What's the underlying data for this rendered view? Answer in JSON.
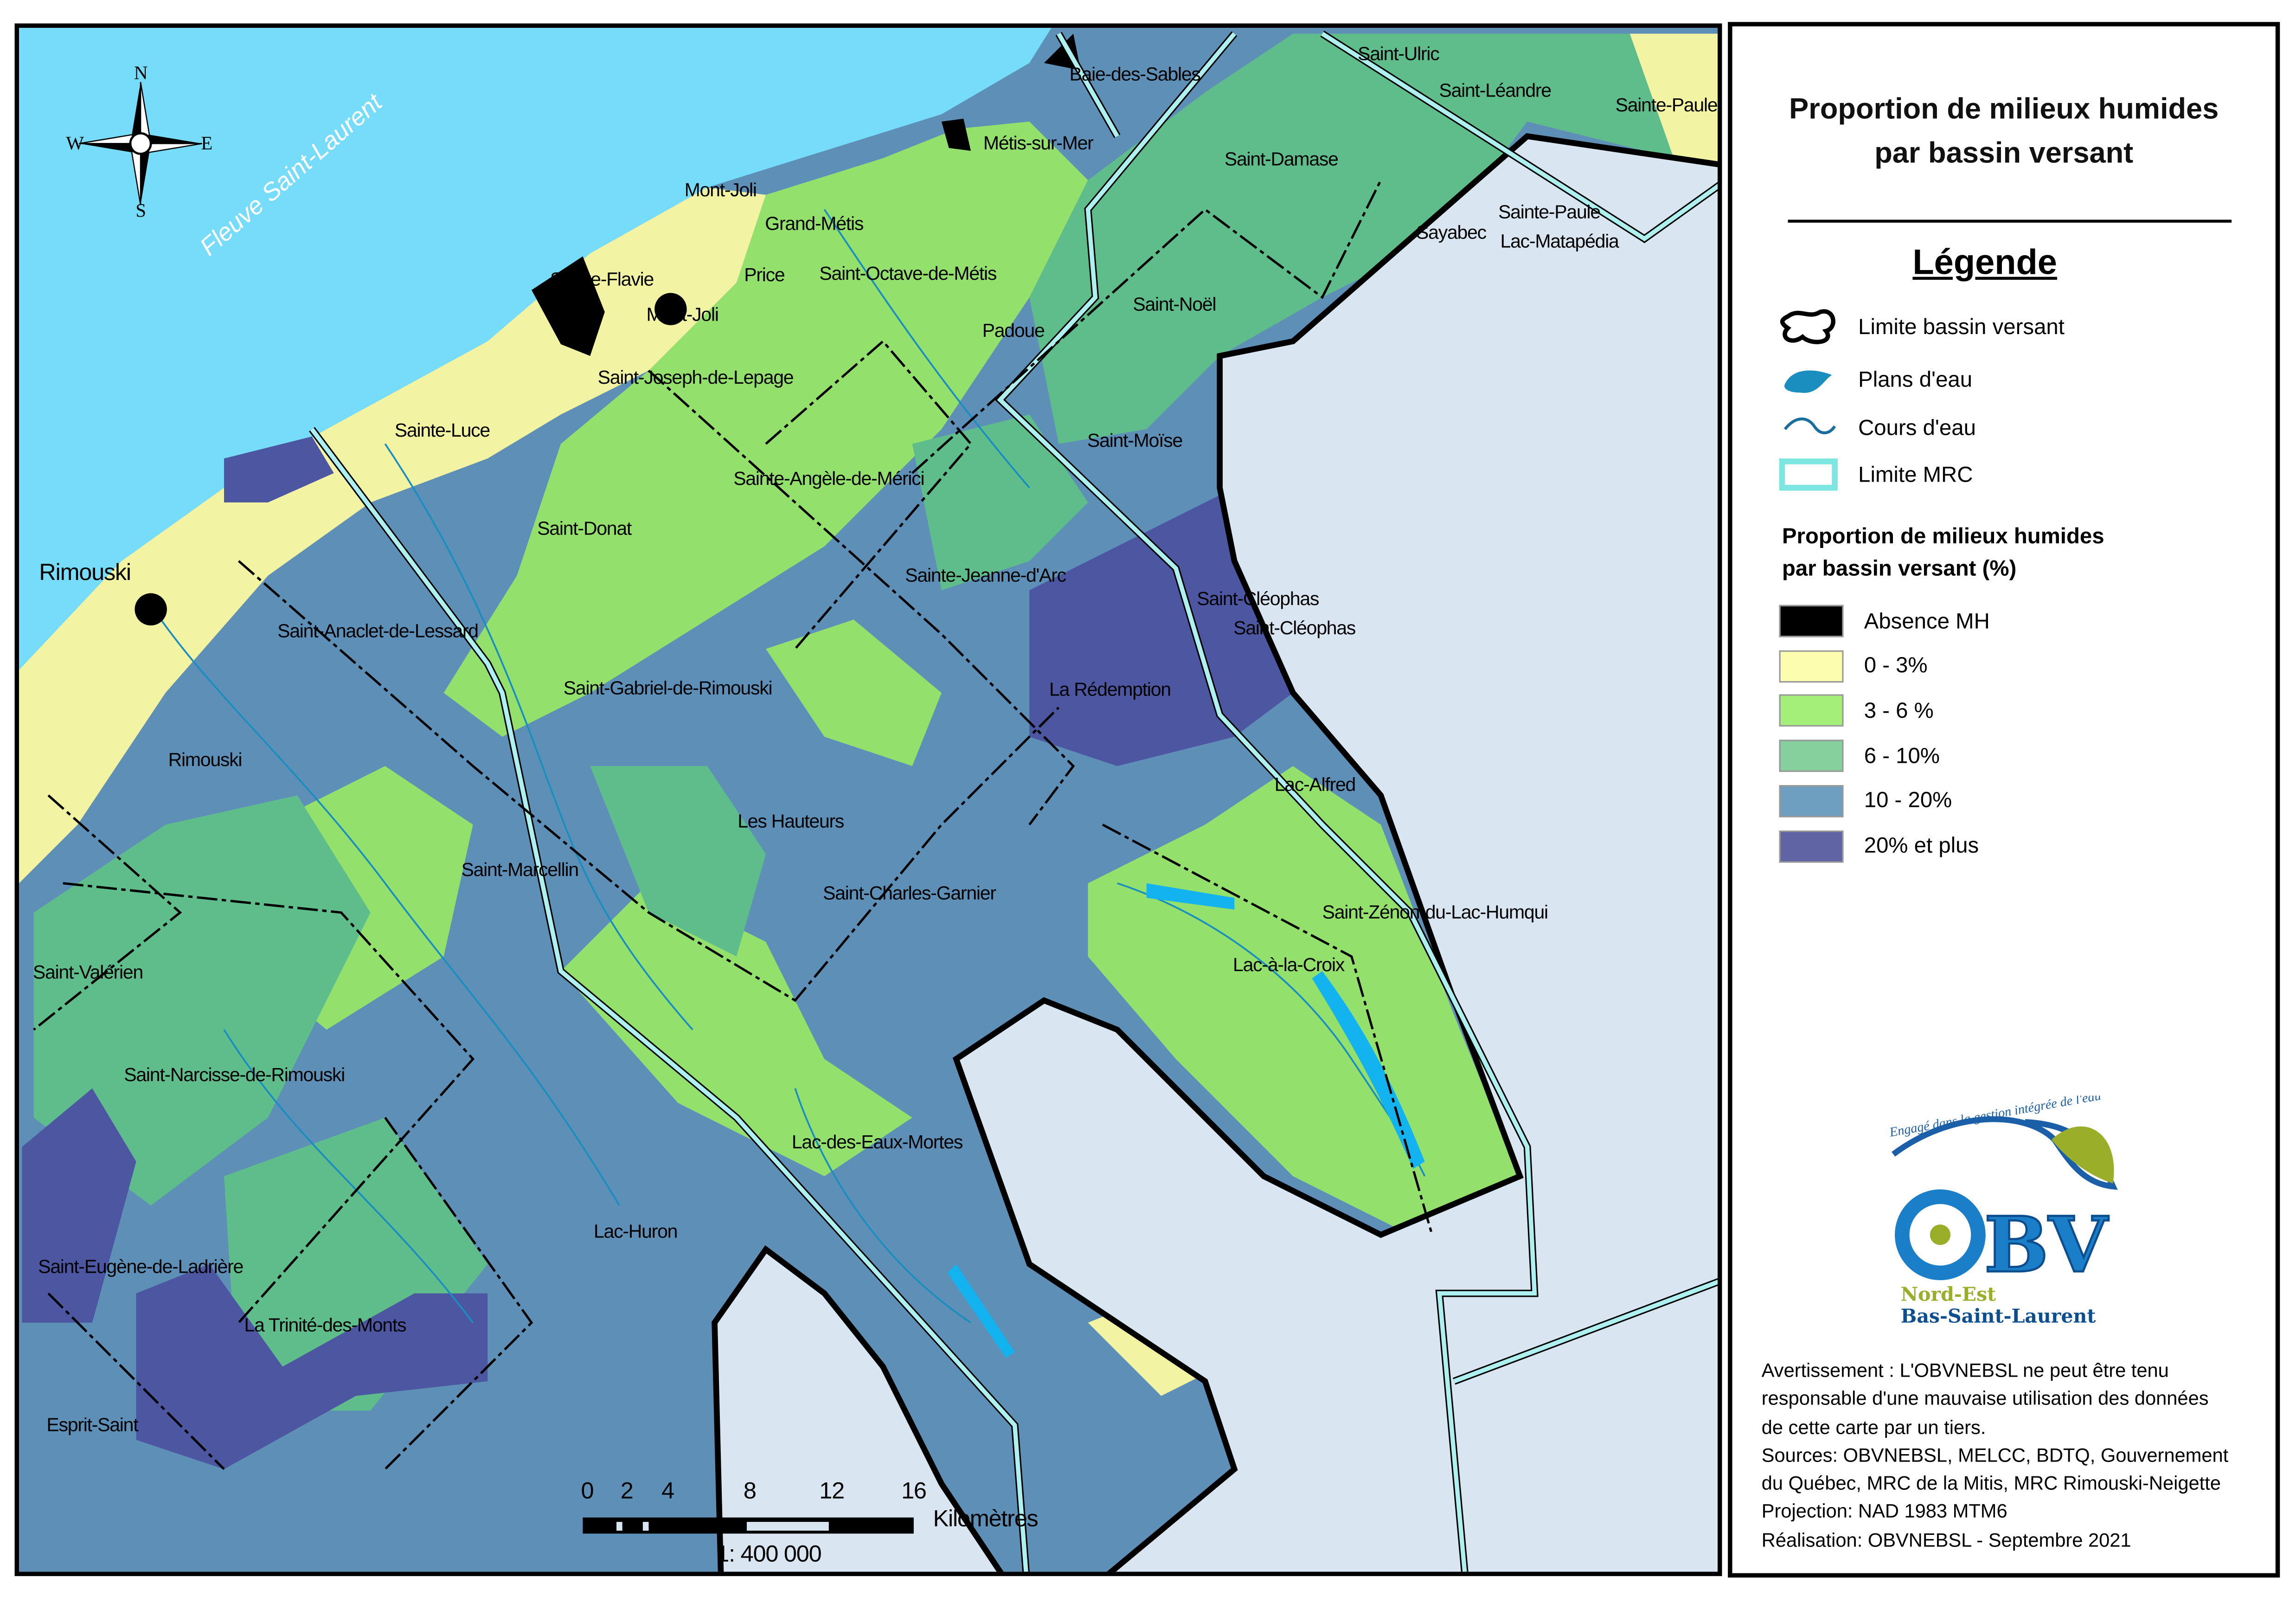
{
  "map": {
    "sea_label": "Fleuve Saint-Laurent",
    "compass": {
      "n": "N",
      "s": "S",
      "e": "E",
      "w": "W"
    },
    "places": [
      "Baie-des-Sables",
      "Saint-Ulric",
      "Saint-Léandre",
      "Sainte-Paule",
      "Métis-sur-Mer",
      "Saint-Damase",
      "Mont-Joli",
      "Grand-Métis",
      "Sainte-Paule",
      "Sayabec",
      "Lac-Matapédia",
      "Sainte-Flavie",
      "Price",
      "Saint-Octave-de-Métis",
      "Mont-Joli",
      "Saint-Noël",
      "Padoue",
      "Saint-Joseph-de-Lepage",
      "Sainte-Luce",
      "Saint-Moïse",
      "Sainte-Angèle-de-Mérici",
      "Saint-Donat",
      "Rimouski",
      "Sainte-Jeanne-d'Arc",
      "Saint-Cléophas",
      "Saint-Cléophas",
      "Saint-Anaclet-de-Lessard",
      "Saint-Gabriel-de-Rimouski",
      "La Rédemption",
      "Rimouski",
      "Lac-Alfred",
      "Les Hauteurs",
      "Saint-Marcellin",
      "Saint-Charles-Garnier",
      "Saint-Zénon-du-Lac-Humqui",
      "Lac-à-la-Croix",
      "Saint-Valérien",
      "Saint-Narcisse-de-Rimouski",
      "Lac-des-Eaux-Mortes",
      "Lac-Huron",
      "Saint-Eugène-de-Ladrière",
      "La Trinité-des-Monts",
      "Esprit-Saint"
    ],
    "scalebar": {
      "ticks": [
        "0",
        "2",
        "4",
        "8",
        "12",
        "16"
      ],
      "unit": "Kilomètres",
      "ratio": "1: 400 000"
    }
  },
  "panel": {
    "title_line1": "Proportion de milieux humides",
    "title_line2": "par bassin versant",
    "legend_heading": "Légende",
    "symbols": [
      {
        "label": "Limite bassin versant",
        "icon": "watershed-outline-icon"
      },
      {
        "label": "Plans d'eau",
        "icon": "water-body-icon"
      },
      {
        "label": "Cours d'eau",
        "icon": "stream-icon"
      },
      {
        "label": "Limite MRC",
        "icon": "mrc-boundary-icon"
      }
    ],
    "classes_heading_line1": "Proportion de milieux humides",
    "classes_heading_line2": "par bassin versant (%)",
    "classes": [
      {
        "label": "Absence MH",
        "color": "#000000"
      },
      {
        "label": "0 - 3%",
        "color": "#fdfdaf"
      },
      {
        "label": "3 - 6 %",
        "color": "#a4ef79"
      },
      {
        "label": "6 - 10%",
        "color": "#85d09d"
      },
      {
        "label": "10 - 20%",
        "color": "#6e9fc0"
      },
      {
        "label": "20% et plus",
        "color": "#6064a4"
      }
    ],
    "logo": {
      "tagline": "Engagé dans la gestion intégrée de l'eau",
      "name": "OBV",
      "line1": "Nord-Est",
      "line2": "Bas-Saint-Laurent"
    },
    "disclaimer": [
      "Avertissement : L'OBVNEBSL ne peut être tenu",
      "responsable d'une mauvaise utilisation des données",
      "de cette carte par un tiers.",
      "Sources: OBVNEBSL, MELCC, BDTQ, Gouvernement",
      "du Québec, MRC de la Mitis, MRC Rimouski-Neigette",
      "Projection: NAD 1983 MTM6",
      "Réalisation: OBVNEBSL - Septembre 2021"
    ]
  }
}
